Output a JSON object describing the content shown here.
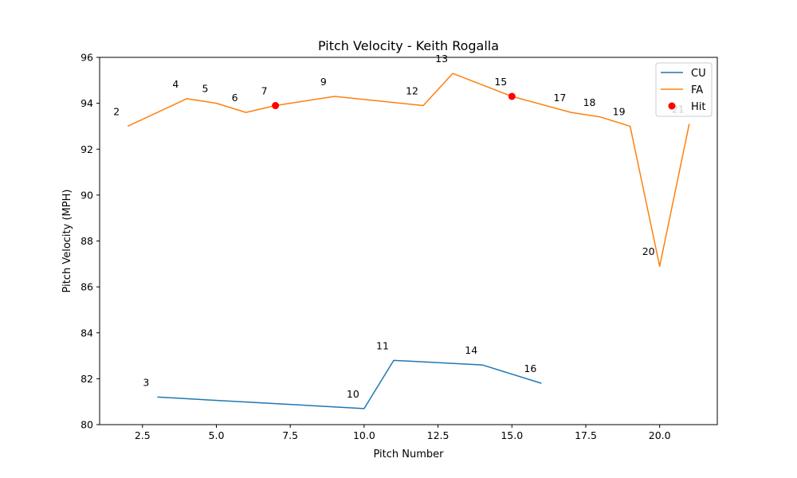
{
  "chart_data": {
    "type": "line",
    "title": "Pitch Velocity - Keith Rogalla",
    "xlabel": "Pitch Number",
    "ylabel": "Pitch Velocity (MPH)",
    "xlim": [
      1.05,
      21.95
    ],
    "ylim": [
      80,
      96
    ],
    "xticks": [
      2.5,
      5.0,
      7.5,
      10.0,
      12.5,
      15.0,
      17.5,
      20.0
    ],
    "xtick_labels": [
      "2.5",
      "5.0",
      "7.5",
      "10.0",
      "12.5",
      "15.0",
      "17.5",
      "20.0"
    ],
    "yticks": [
      80,
      82,
      84,
      86,
      88,
      90,
      92,
      94,
      96
    ],
    "ytick_labels": [
      "80",
      "82",
      "84",
      "86",
      "88",
      "90",
      "92",
      "94",
      "96"
    ],
    "grid": false,
    "legend_position": "top-right",
    "series": [
      {
        "name": "CU",
        "color": "#1f77b4",
        "x": [
          3,
          10,
          11,
          14,
          16
        ],
        "y": [
          81.2,
          80.7,
          82.8,
          82.6,
          81.8
        ]
      },
      {
        "name": "FA",
        "color": "#ff7f0e",
        "x": [
          2,
          4,
          5,
          6,
          7,
          9,
          12,
          13,
          15,
          17,
          18,
          19,
          20,
          21
        ],
        "y": [
          93.0,
          94.2,
          94.0,
          93.6,
          93.9,
          94.3,
          93.9,
          95.3,
          94.3,
          93.6,
          93.4,
          93.0,
          86.9,
          93.1
        ]
      }
    ],
    "hits": {
      "name": "Hit",
      "color": "#ff0000",
      "x": [
        7,
        15
      ],
      "y": [
        93.9,
        94.3
      ]
    },
    "pitch_labels": [
      {
        "text": "2",
        "x": 2,
        "y": 93.0
      },
      {
        "text": "3",
        "x": 3,
        "y": 81.2
      },
      {
        "text": "4",
        "x": 4,
        "y": 94.2
      },
      {
        "text": "5",
        "x": 5,
        "y": 94.0
      },
      {
        "text": "6",
        "x": 6,
        "y": 93.6
      },
      {
        "text": "7",
        "x": 7,
        "y": 93.9
      },
      {
        "text": "9",
        "x": 9,
        "y": 94.3
      },
      {
        "text": "10",
        "x": 10,
        "y": 80.7
      },
      {
        "text": "11",
        "x": 11,
        "y": 82.8
      },
      {
        "text": "12",
        "x": 12,
        "y": 93.9
      },
      {
        "text": "13",
        "x": 13,
        "y": 95.3
      },
      {
        "text": "14",
        "x": 14,
        "y": 82.6
      },
      {
        "text": "15",
        "x": 15,
        "y": 94.3
      },
      {
        "text": "16",
        "x": 16,
        "y": 81.8
      },
      {
        "text": "17",
        "x": 17,
        "y": 93.6
      },
      {
        "text": "18",
        "x": 18,
        "y": 93.4
      },
      {
        "text": "19",
        "x": 19,
        "y": 93.0
      },
      {
        "text": "20",
        "x": 20,
        "y": 86.9
      },
      {
        "text": "21",
        "x": 21,
        "y": 93.1
      }
    ]
  }
}
